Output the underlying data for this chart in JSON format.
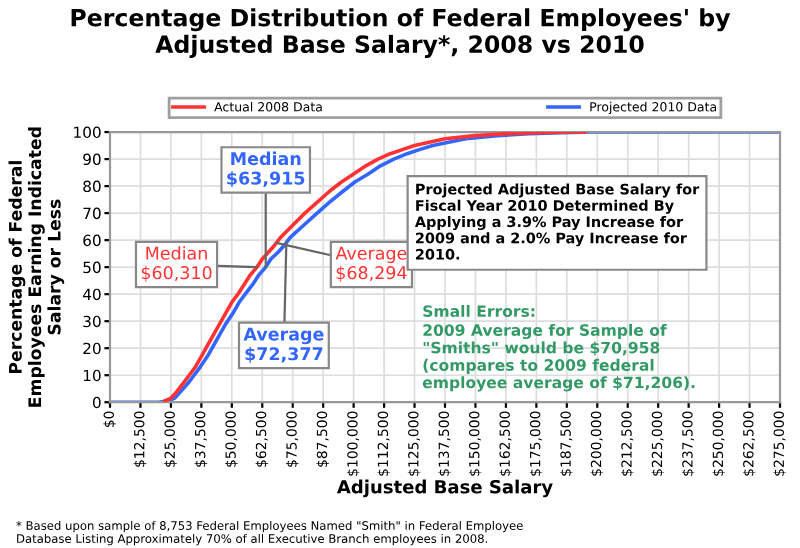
{
  "chart_data": {
    "type": "line",
    "title": "Percentage Distribution of Federal Employees' by\nAdjusted Base Salary*, 2008 vs 2010",
    "xlabel": "Adjusted Base Salary",
    "ylabel": "Percentage of Federal\nEmployees Earning Indicated\nSalary or Less",
    "series": [
      {
        "name": "Actual 2008 Data",
        "color": "#ff3333",
        "x": [
          22500,
          25000,
          27500,
          30000,
          32500,
          35000,
          37500,
          40000,
          42500,
          45000,
          47500,
          50000,
          52500,
          55000,
          57500,
          60310,
          62500,
          65000,
          67500,
          70000,
          75000,
          80000,
          85000,
          90000,
          95000,
          100000,
          105000,
          110000,
          115000,
          120000,
          125000,
          137500,
          150000,
          162500,
          175000,
          187500,
          195000
        ],
        "values": [
          0.5,
          1.5,
          4,
          7,
          10,
          13,
          17,
          21,
          25,
          29,
          33,
          37,
          40,
          43.5,
          47,
          50,
          53,
          55.5,
          58,
          61,
          65.5,
          70,
          74,
          78,
          81.5,
          84.5,
          87.5,
          90,
          92,
          93.5,
          95,
          97.5,
          98.7,
          99.4,
          99.8,
          100,
          100
        ]
      },
      {
        "name": "Projected 2010 Data",
        "color": "#3366ff",
        "x": [
          0,
          12500,
          20000,
          24000,
          26500,
          29000,
          32000,
          34500,
          37000,
          40000,
          42500,
          45000,
          47500,
          50500,
          53000,
          55500,
          58500,
          61000,
          63915,
          66000,
          69000,
          71500,
          74000,
          79500,
          85000,
          90000,
          95500,
          100500,
          106000,
          111000,
          116500,
          122000,
          127000,
          132500,
          146000,
          159000,
          172000,
          185500,
          198500,
          275000
        ],
        "values": [
          0,
          0,
          0,
          0.5,
          1.5,
          4,
          7,
          10,
          13,
          17,
          21,
          25,
          29,
          33,
          37,
          40,
          43.5,
          47,
          50,
          53,
          55.5,
          58,
          61,
          65.5,
          70,
          74,
          78,
          81.5,
          84.5,
          87.5,
          90,
          92,
          93.5,
          95,
          97.5,
          98.7,
          99.4,
          99.8,
          100,
          100
        ]
      }
    ],
    "xlim": [
      0,
      275000
    ],
    "xticks": [
      {
        "value": 0,
        "label": "$0"
      },
      {
        "value": 12500,
        "label": "$12,500"
      },
      {
        "value": 25000,
        "label": "$25,000"
      },
      {
        "value": 37500,
        "label": "$37,500"
      },
      {
        "value": 50000,
        "label": "$50,000"
      },
      {
        "value": 62500,
        "label": "$62,500"
      },
      {
        "value": 75000,
        "label": "$75,000"
      },
      {
        "value": 87500,
        "label": "$87,500"
      },
      {
        "value": 100000,
        "label": "$100,000"
      },
      {
        "value": 112500,
        "label": "$112,500"
      },
      {
        "value": 125000,
        "label": "$125,000"
      },
      {
        "value": 137500,
        "label": "$137,500"
      },
      {
        "value": 150000,
        "label": "$150,000"
      },
      {
        "value": 162500,
        "label": "$162,500"
      },
      {
        "value": 175000,
        "label": "$175,000"
      },
      {
        "value": 187500,
        "label": "$187,500"
      },
      {
        "value": 200000,
        "label": "$200,000"
      },
      {
        "value": 212500,
        "label": "$212,500"
      },
      {
        "value": 225000,
        "label": "$225,000"
      },
      {
        "value": 237500,
        "label": "$237,500"
      },
      {
        "value": 250000,
        "label": "$250,000"
      },
      {
        "value": 262500,
        "label": "$262,500"
      },
      {
        "value": 275000,
        "label": "$275,000"
      }
    ],
    "ylim": [
      0,
      100
    ],
    "yticks": [
      0,
      10,
      20,
      30,
      40,
      50,
      60,
      70,
      80,
      90,
      100
    ],
    "grid": true,
    "legend": "top",
    "marker": "none",
    "line_style": "solid",
    "annotations": [
      {
        "text": "Median\n$60,310",
        "x": 60310,
        "y": 50
      },
      {
        "text": "Median\n$63,915",
        "x": 63915,
        "y": 50
      },
      {
        "text": "Average\n$68,294",
        "x": 68294,
        "y": 59
      },
      {
        "text": "Average\n$72,377",
        "x": 72377,
        "y": 59
      },
      "Projected Adjusted Base Salary for\nFiscal Year 2010 Determined By\nApplying a 3.9% Pay Increase for\n2009 and a 2.0% Pay Increase for\n2010.",
      "Small Errors:",
      "2009 Average for Sample of\n\"Smiths\" would be $70,958\n(compares to 2009 federal\nemployee average of $71,206).",
      "* Based upon sample of 8,753 Federal Employees Named \"Smith\" in Federal Employee\nDatabase Listing Approximately 70% of all Executive Branch employees in 2008."
    ]
  }
}
